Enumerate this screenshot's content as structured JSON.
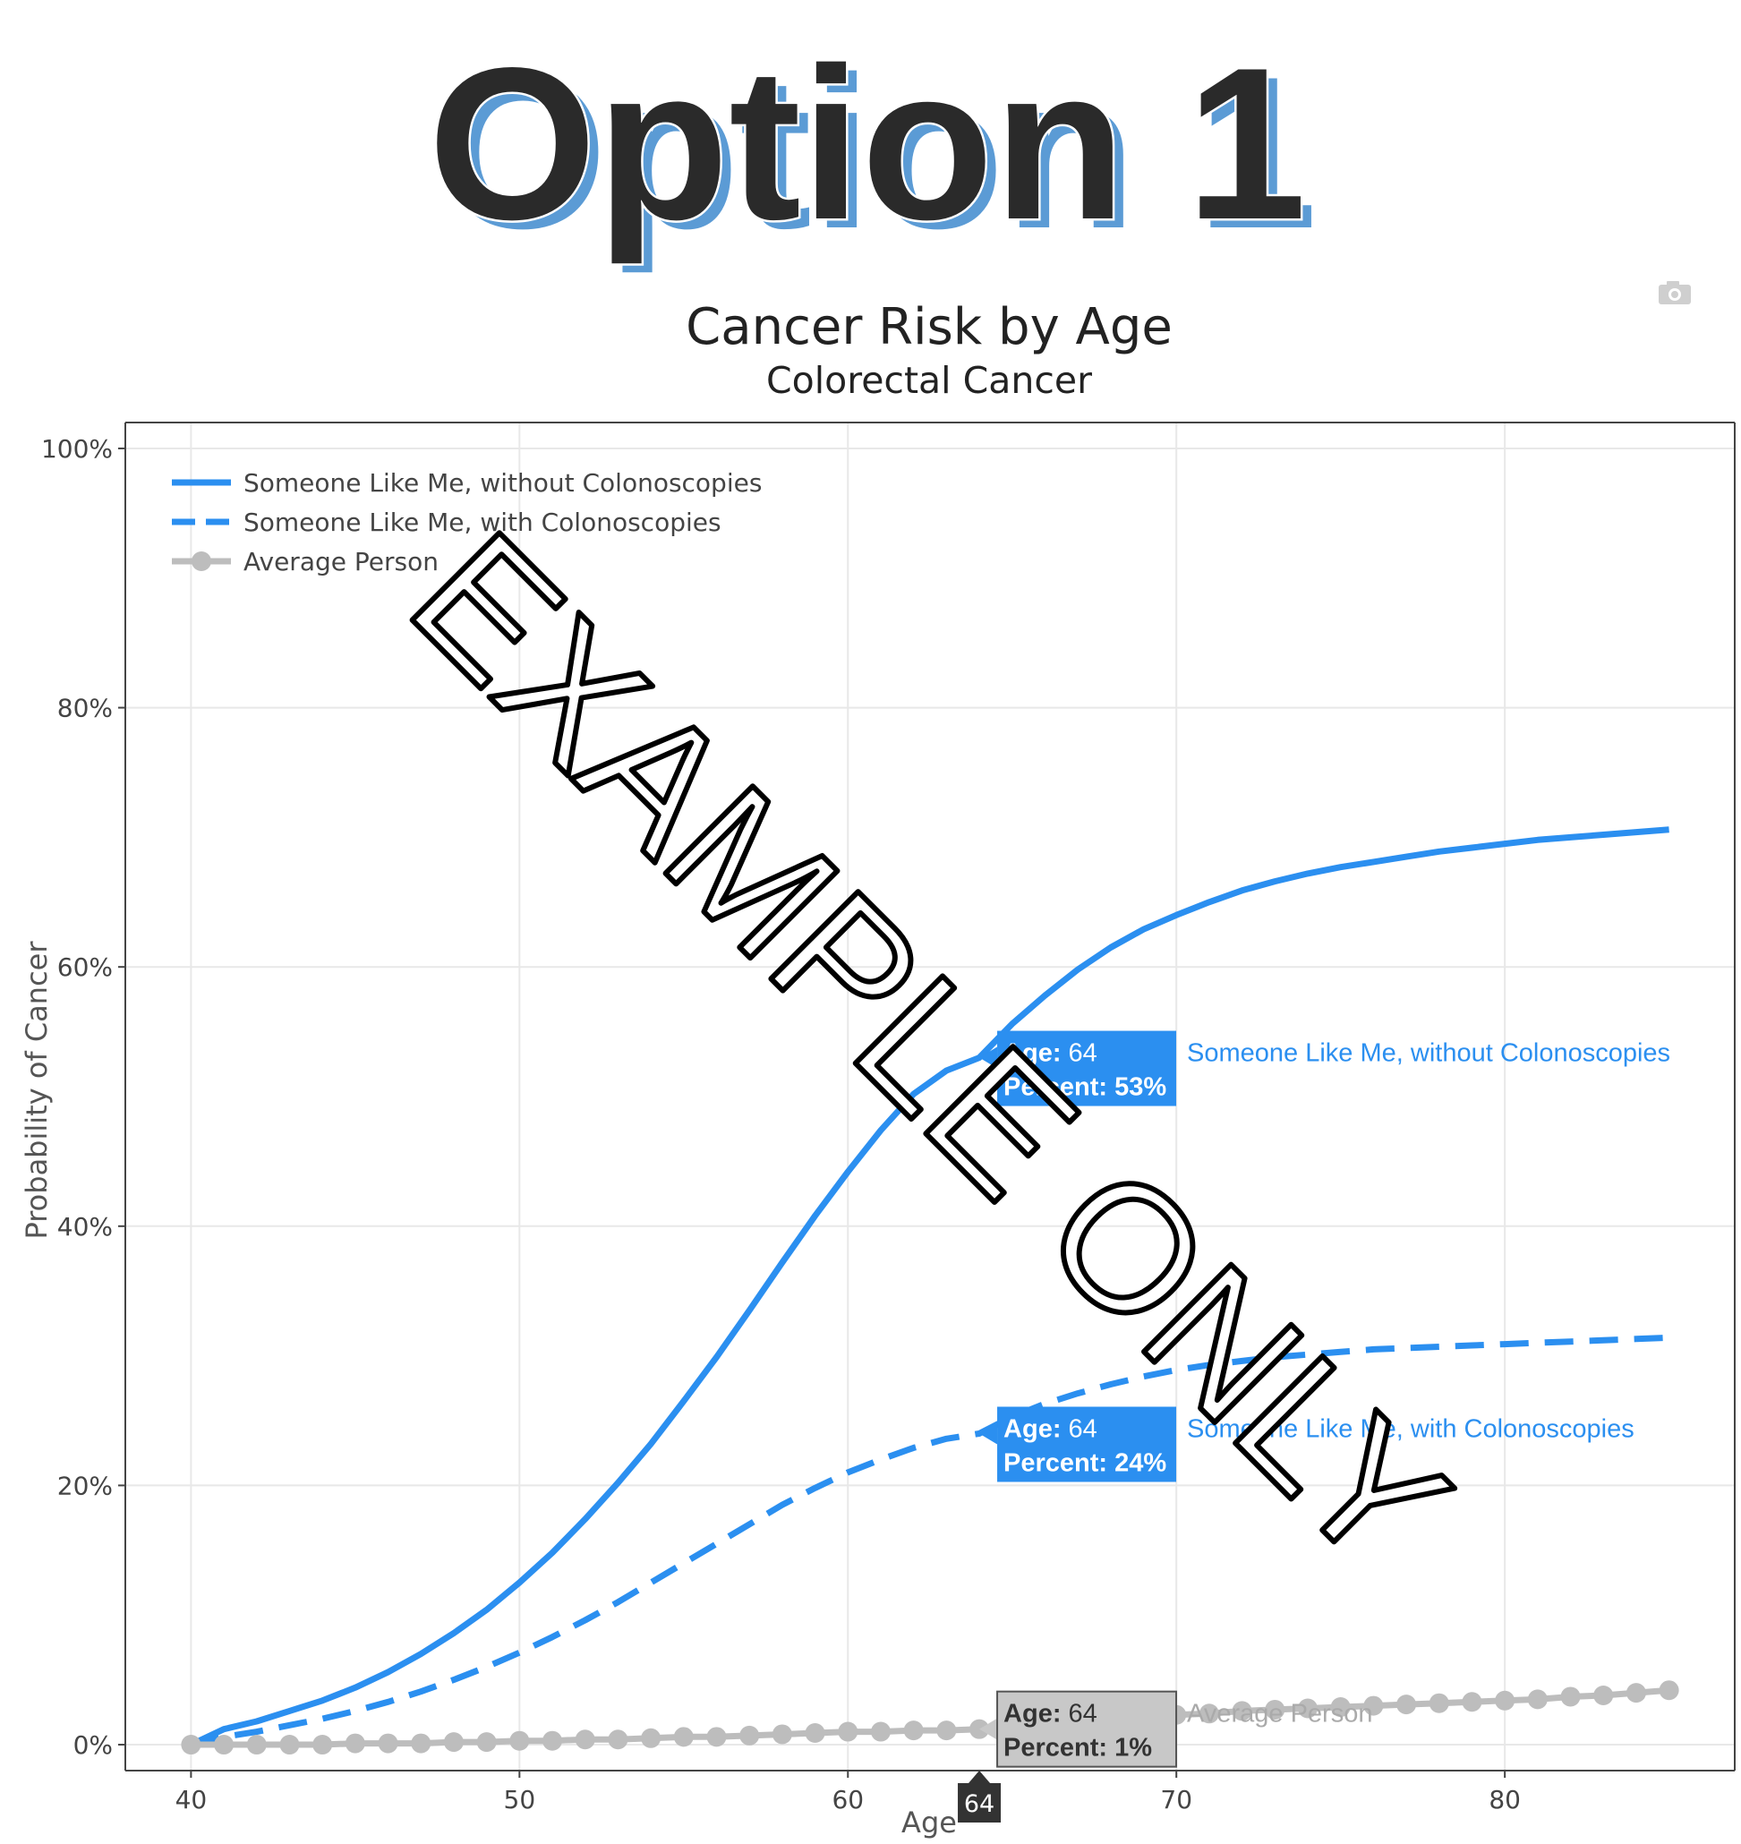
{
  "heading": "Option 1",
  "watermark": "EXAMPLE ONLY",
  "colors": {
    "blue": "#2b8ff0",
    "gray": "#bdbdbd",
    "heading_fill": "#2a2a2a",
    "heading_shadow": "#5b9bd5",
    "grid": "#e8e8e8"
  },
  "chart_data": {
    "type": "line",
    "title": "Cancer Risk by Age",
    "subtitle": "Colorectal Cancer",
    "xlabel": "Age",
    "ylabel": "Probability of Cancer",
    "xlim": [
      38,
      87
    ],
    "ylim": [
      -2,
      102
    ],
    "x_ticks": [
      40,
      50,
      60,
      70,
      80
    ],
    "y_ticks": [
      0,
      20,
      40,
      60,
      80,
      100
    ],
    "y_tick_labels": [
      "0%",
      "20%",
      "40%",
      "60%",
      "80%",
      "100%"
    ],
    "grid": true,
    "legend_position": "top-left",
    "x": [
      40,
      41,
      42,
      43,
      44,
      45,
      46,
      47,
      48,
      49,
      50,
      51,
      52,
      53,
      54,
      55,
      56,
      57,
      58,
      59,
      60,
      61,
      62,
      63,
      64,
      65,
      66,
      67,
      68,
      69,
      70,
      71,
      72,
      73,
      74,
      75,
      76,
      77,
      78,
      79,
      80,
      81,
      82,
      83,
      84,
      85
    ],
    "series": [
      {
        "name": "Someone Like Me, without Colonoscopies",
        "style": "solid",
        "values": [
          0,
          1.2,
          1.8,
          2.6,
          3.4,
          4.4,
          5.6,
          7.0,
          8.6,
          10.4,
          12.5,
          14.8,
          17.4,
          20.2,
          23.2,
          26.5,
          29.9,
          33.5,
          37.2,
          40.8,
          44.2,
          47.4,
          50.2,
          52.0,
          53.0,
          55.6,
          57.8,
          59.8,
          61.5,
          62.9,
          64.0,
          65.0,
          65.9,
          66.6,
          67.2,
          67.7,
          68.1,
          68.5,
          68.9,
          69.2,
          69.5,
          69.8,
          70.0,
          70.2,
          70.4,
          70.6
        ]
      },
      {
        "name": "Someone Like Me, with Colonoscopies",
        "style": "dashed",
        "values": [
          0,
          0.6,
          1.0,
          1.5,
          2.0,
          2.6,
          3.3,
          4.1,
          5.0,
          6.0,
          7.1,
          8.3,
          9.6,
          11.0,
          12.5,
          14.0,
          15.5,
          17.0,
          18.5,
          19.8,
          21.0,
          22.0,
          22.9,
          23.6,
          24.0,
          25.3,
          26.3,
          27.1,
          27.8,
          28.4,
          28.9,
          29.3,
          29.6,
          29.9,
          30.1,
          30.3,
          30.5,
          30.6,
          30.7,
          30.8,
          30.9,
          31.0,
          31.1,
          31.2,
          31.3,
          31.4
        ]
      },
      {
        "name": "Average Person",
        "style": "markers",
        "values": [
          0,
          0,
          0,
          0,
          0,
          0.1,
          0.1,
          0.1,
          0.2,
          0.2,
          0.3,
          0.3,
          0.4,
          0.4,
          0.5,
          0.6,
          0.6,
          0.7,
          0.8,
          0.9,
          1.0,
          1.0,
          1.1,
          1.1,
          1.2,
          1.4,
          1.6,
          1.8,
          2.0,
          2.1,
          2.3,
          2.4,
          2.6,
          2.7,
          2.8,
          2.9,
          3.0,
          3.1,
          3.2,
          3.3,
          3.4,
          3.5,
          3.7,
          3.8,
          4.0,
          4.2
        ]
      }
    ],
    "hover": {
      "x": 64,
      "x_badge": "64",
      "age_label": "Age:",
      "percent_label": "Percent:",
      "items": [
        {
          "series": 0,
          "age": "64",
          "percent": "53%",
          "label": "Someone Like Me, without Colonoscopies"
        },
        {
          "series": 1,
          "age": "64",
          "percent": "24%",
          "label": "Someone Like Me, with Colonoscopies"
        },
        {
          "series": 2,
          "age": "64",
          "percent": "1%",
          "label": "Average Person"
        }
      ]
    }
  },
  "toolbar": {
    "camera_icon": "camera-icon"
  }
}
